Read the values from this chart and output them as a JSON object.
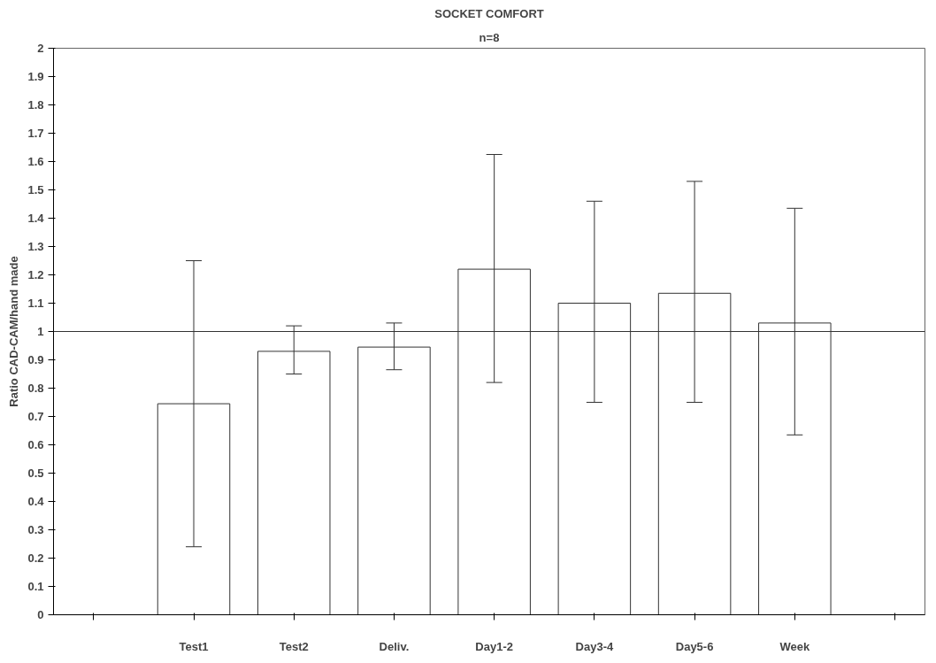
{
  "chart_data": {
    "type": "bar",
    "title": "SOCKET COMFORT",
    "subtitle": "n=8",
    "ylabel": "Ratio CAD-CAM/hand made",
    "categories": [
      null,
      "Test1",
      "Test2",
      "Deliv.",
      "Day1-2",
      "Day3-4",
      "Day5-6",
      "Week",
      null
    ],
    "series": [
      {
        "color": "#ffffff",
        "values": [
          null,
          0.745,
          0.93,
          0.945,
          1.22,
          1.1,
          1.135,
          1.03,
          null
        ],
        "errors": [
          null,
          [
            0.24,
            1.25
          ],
          [
            0.85,
            1.02
          ],
          [
            0.865,
            1.03
          ],
          [
            0.82,
            1.625
          ],
          [
            0.75,
            1.46
          ],
          [
            0.75,
            1.53
          ],
          [
            0.635,
            1.435
          ],
          null
        ]
      }
    ],
    "ylim": [
      0,
      2
    ],
    "yticks": [
      0,
      0.1,
      0.2,
      0.3,
      0.4,
      0.5,
      0.6,
      0.7,
      0.8,
      0.9,
      1,
      1.1,
      1.2,
      1.3,
      1.4,
      1.5,
      1.6,
      1.7,
      1.8,
      1.9,
      2
    ],
    "ref_lines": [
      {
        "axis": "y",
        "value": 1,
        "label": null,
        "color": "#333333"
      }
    ],
    "grid": false
  }
}
